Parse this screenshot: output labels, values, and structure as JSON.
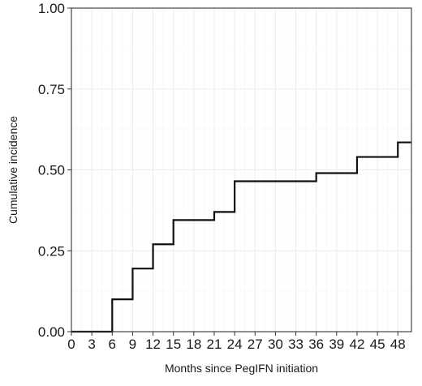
{
  "chart_data": {
    "type": "line",
    "style": "step",
    "title": "",
    "xlabel": "Months since PegIFN initiation",
    "ylabel": "Cumulative incidence",
    "xlim": [
      0,
      50
    ],
    "ylim": [
      0,
      1
    ],
    "x_ticks": [
      0,
      3,
      6,
      9,
      12,
      15,
      18,
      21,
      24,
      27,
      30,
      33,
      36,
      39,
      42,
      45,
      48
    ],
    "y_ticks": [
      0,
      0.25,
      0.5,
      0.75,
      1
    ],
    "x_tick_labels": [
      "0",
      "3",
      "6",
      "9",
      "12",
      "15",
      "18",
      "21",
      "24",
      "27",
      "30",
      "33",
      "36",
      "39",
      "42",
      "45",
      "48"
    ],
    "y_tick_labels": [
      "0.00",
      "0.25",
      "0.50",
      "0.75",
      "1.00"
    ],
    "grid": true,
    "series": [
      {
        "x": [
          0,
          6,
          9,
          12,
          15,
          21,
          24,
          36,
          42,
          48,
          50
        ],
        "y": [
          0,
          0.1,
          0.195,
          0.27,
          0.345,
          0.37,
          0.465,
          0.49,
          0.54,
          0.585,
          0.585
        ]
      }
    ],
    "colors": {
      "line": "#111111",
      "grid": "#ebebeb",
      "axis": "#333333"
    }
  }
}
